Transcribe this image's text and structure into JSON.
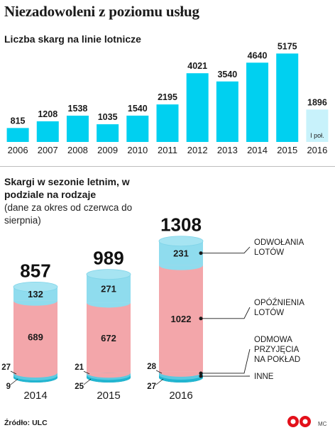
{
  "title": "Niezadowoleni z poziomu usług",
  "source": "Źródło: ULC",
  "brand_label": "MC",
  "colors": {
    "cyan": "#00d0f0",
    "cyan_light": "#c8f2fb",
    "pink": "#f3a6aa",
    "light_blue": "#8fdcee",
    "teal": "#22b5d0"
  },
  "chart_data": [
    {
      "type": "bar",
      "title": "Liczba skarg na linie lotnicze",
      "categories": [
        "2006",
        "2007",
        "2008",
        "2009",
        "2010",
        "2011",
        "2012",
        "2013",
        "2014",
        "2015",
        "2016"
      ],
      "values": [
        815,
        1208,
        1538,
        1035,
        1540,
        2195,
        4021,
        3540,
        4640,
        5175,
        1896
      ],
      "value_labels": [
        "815",
        "1208",
        "1538",
        "1035",
        "1540",
        "2195",
        "4021",
        "3540",
        "4640",
        "5175",
        "1896"
      ],
      "annotations": [
        {
          "category": "2016",
          "text": "I poł."
        }
      ],
      "ylim": [
        0,
        5400
      ],
      "grid": false
    },
    {
      "type": "bar",
      "stacked": true,
      "title": "Skargi w sezonie letnim, w podziale na rodzaje",
      "subtitle": "(dane za okres od czerwca do sierpnia)",
      "categories": [
        "2014",
        "2015",
        "2016"
      ],
      "totals": [
        857,
        989,
        1308
      ],
      "series": [
        {
          "name": "INNE",
          "values": [
            9,
            25,
            27
          ]
        },
        {
          "name": "ODMOWA PRZYJĘCIA NA POKŁAD",
          "values": [
            27,
            21,
            28
          ]
        },
        {
          "name": "OPÓŹNIENIA LOTÓW",
          "values": [
            689,
            672,
            1022
          ]
        },
        {
          "name": "ODWOŁANIA LOTÓW",
          "values": [
            132,
            271,
            231
          ]
        }
      ],
      "legend": [
        {
          "lines": [
            "ODWOŁANIA",
            "LOTÓW"
          ]
        },
        {
          "lines": [
            "OPÓŹNIENIA",
            "LOTÓW"
          ]
        },
        {
          "lines": [
            "ODMOWA",
            "PRZYJĘCIA",
            "NA POKŁAD"
          ]
        },
        {
          "lines": [
            "INNE"
          ]
        }
      ],
      "legend_position": "right"
    }
  ]
}
